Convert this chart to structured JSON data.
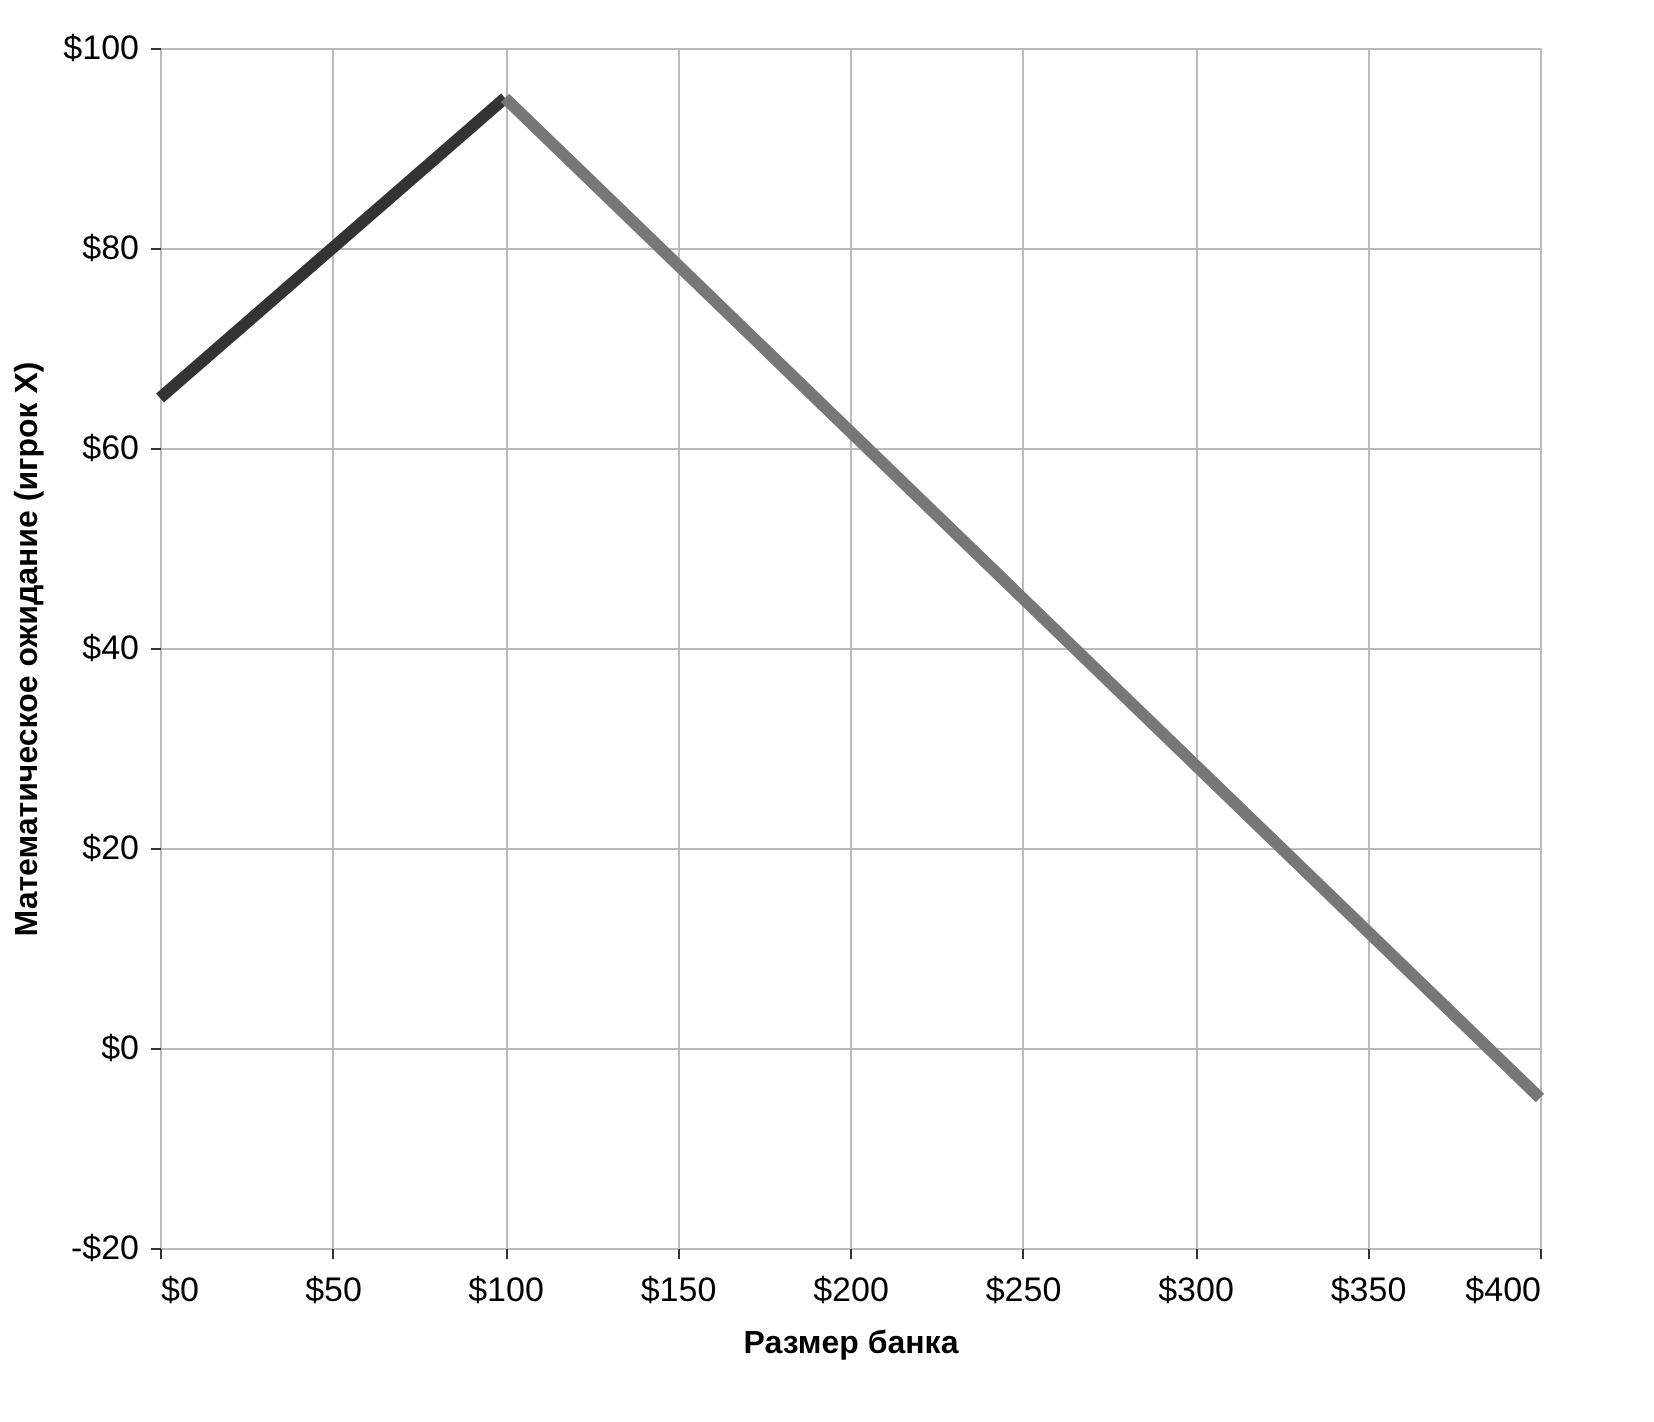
{
  "chart_data": {
    "type": "line",
    "xlabel": "Размер банка",
    "ylabel": "Математическое ожидание (игрок X)",
    "series": [
      {
        "x": [
          0,
          100
        ],
        "values": [
          65,
          95
        ],
        "color": "#333333"
      },
      {
        "x": [
          100,
          400
        ],
        "values": [
          95,
          -5
        ],
        "color": "#777777"
      }
    ],
    "xlim": [
      0,
      400
    ],
    "ylim": [
      -20,
      100
    ],
    "xticks": [
      {
        "value": 0,
        "label": "$0"
      },
      {
        "value": 50,
        "label": "$50"
      },
      {
        "value": 100,
        "label": "$100"
      },
      {
        "value": 150,
        "label": "$150"
      },
      {
        "value": 200,
        "label": "$200"
      },
      {
        "value": 250,
        "label": "$250"
      },
      {
        "value": 300,
        "label": "$300"
      },
      {
        "value": 350,
        "label": "$350"
      },
      {
        "value": 400,
        "label": "$400"
      }
    ],
    "yticks": [
      {
        "value": -20,
        "label": "-$20"
      },
      {
        "value": 0,
        "label": "$0"
      },
      {
        "value": 20,
        "label": "$20"
      },
      {
        "value": 40,
        "label": "$40"
      },
      {
        "value": 60,
        "label": "$60"
      },
      {
        "value": 80,
        "label": "$80"
      },
      {
        "value": 100,
        "label": "$100"
      }
    ],
    "grid": true,
    "marker": "none",
    "line_style": "solid",
    "legend": false
  }
}
